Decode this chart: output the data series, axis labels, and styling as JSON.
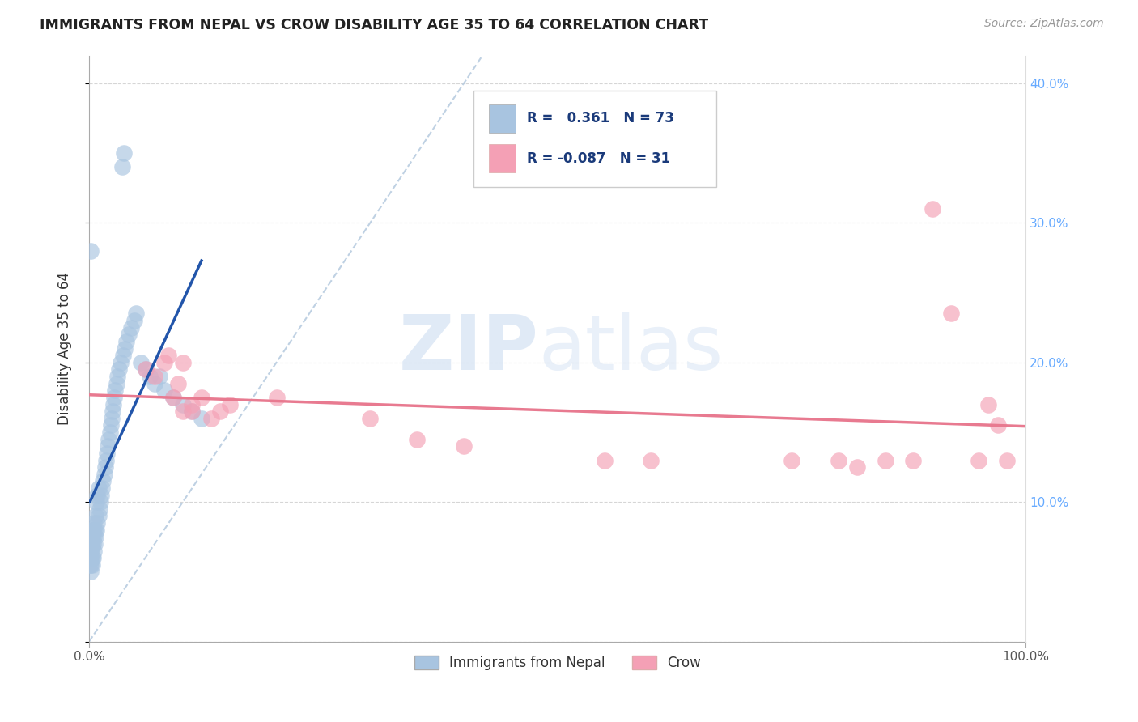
{
  "title": "IMMIGRANTS FROM NEPAL VS CROW DISABILITY AGE 35 TO 64 CORRELATION CHART",
  "source": "Source: ZipAtlas.com",
  "ylabel": "Disability Age 35 to 64",
  "xlim": [
    0.0,
    1.0
  ],
  "ylim": [
    0.0,
    0.42
  ],
  "nepal_color": "#a8c4e0",
  "nepal_edge_color": "#7aaacf",
  "crow_color": "#f4a0b5",
  "crow_edge_color": "#e080a0",
  "nepal_line_color": "#2255aa",
  "crow_line_color": "#e87a90",
  "diagonal_color": "#b8cce0",
  "r_nepal": 0.361,
  "n_nepal": 73,
  "r_crow": -0.087,
  "n_crow": 31,
  "nepal_x": [
    0.001,
    0.001,
    0.001,
    0.001,
    0.001,
    0.002,
    0.002,
    0.002,
    0.002,
    0.002,
    0.002,
    0.003,
    0.003,
    0.003,
    0.003,
    0.004,
    0.004,
    0.004,
    0.005,
    0.005,
    0.005,
    0.006,
    0.006,
    0.007,
    0.007,
    0.008,
    0.008,
    0.009,
    0.009,
    0.01,
    0.01,
    0.011,
    0.012,
    0.013,
    0.014,
    0.015,
    0.016,
    0.017,
    0.018,
    0.019,
    0.02,
    0.021,
    0.022,
    0.023,
    0.024,
    0.025,
    0.026,
    0.027,
    0.028,
    0.029,
    0.03,
    0.032,
    0.034,
    0.036,
    0.038,
    0.04,
    0.042,
    0.045,
    0.048,
    0.05,
    0.055,
    0.06,
    0.065,
    0.07,
    0.075,
    0.08,
    0.09,
    0.1,
    0.11,
    0.12,
    0.035,
    0.037,
    0.002
  ],
  "nepal_y": [
    0.055,
    0.06,
    0.065,
    0.07,
    0.075,
    0.05,
    0.055,
    0.06,
    0.065,
    0.07,
    0.08,
    0.055,
    0.06,
    0.068,
    0.075,
    0.06,
    0.07,
    0.08,
    0.065,
    0.075,
    0.085,
    0.07,
    0.08,
    0.075,
    0.09,
    0.08,
    0.1,
    0.085,
    0.105,
    0.09,
    0.11,
    0.095,
    0.1,
    0.105,
    0.11,
    0.115,
    0.12,
    0.125,
    0.13,
    0.135,
    0.14,
    0.145,
    0.15,
    0.155,
    0.16,
    0.165,
    0.17,
    0.175,
    0.18,
    0.185,
    0.19,
    0.195,
    0.2,
    0.205,
    0.21,
    0.215,
    0.22,
    0.225,
    0.23,
    0.235,
    0.2,
    0.195,
    0.19,
    0.185,
    0.19,
    0.18,
    0.175,
    0.17,
    0.165,
    0.16,
    0.34,
    0.35,
    0.28
  ],
  "crow_x": [
    0.06,
    0.07,
    0.08,
    0.085,
    0.09,
    0.095,
    0.1,
    0.1,
    0.11,
    0.11,
    0.12,
    0.13,
    0.14,
    0.15,
    0.2,
    0.3,
    0.35,
    0.4,
    0.55,
    0.6,
    0.75,
    0.8,
    0.82,
    0.85,
    0.88,
    0.9,
    0.92,
    0.95,
    0.96,
    0.97,
    0.98
  ],
  "crow_y": [
    0.195,
    0.19,
    0.2,
    0.205,
    0.175,
    0.185,
    0.165,
    0.2,
    0.165,
    0.17,
    0.175,
    0.16,
    0.165,
    0.17,
    0.175,
    0.16,
    0.145,
    0.14,
    0.13,
    0.13,
    0.13,
    0.13,
    0.125,
    0.13,
    0.13,
    0.31,
    0.235,
    0.13,
    0.17,
    0.155,
    0.13
  ],
  "watermark_zip": "ZIP",
  "watermark_atlas": "atlas",
  "background_color": "#ffffff"
}
